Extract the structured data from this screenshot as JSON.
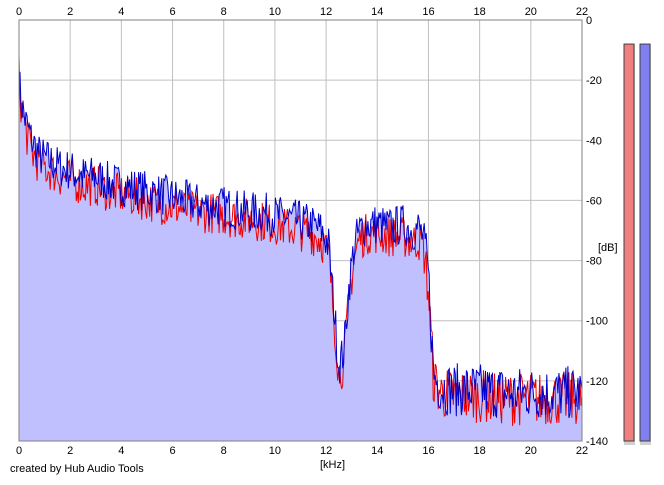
{
  "credit": "created by Hub Audio Tools",
  "chart_data": {
    "type": "area",
    "xlabel": "[kHz]",
    "ylabel": "[dB]",
    "xlim": [
      0,
      22
    ],
    "ylim": [
      -140,
      0
    ],
    "x_ticks": [
      0,
      2,
      4,
      6,
      8,
      10,
      12,
      14,
      16,
      18,
      20,
      22
    ],
    "y_ticks": [
      0,
      -20,
      -40,
      -60,
      -80,
      -100,
      -120,
      -140
    ],
    "grid": true,
    "series": [
      {
        "color": "#0000cc",
        "fill": "#c0c0ff",
        "x": [
          0,
          0.1,
          0.3,
          0.5,
          0.8,
          1.2,
          1.6,
          2.0,
          2.5,
          3.0,
          3.5,
          4.0,
          4.5,
          5.0,
          5.5,
          6.0,
          6.5,
          7.0,
          7.5,
          8.0,
          8.5,
          9.0,
          9.5,
          10.0,
          10.5,
          11.0,
          11.4,
          11.8,
          12.1,
          12.3,
          12.5,
          12.7,
          12.9,
          13.1,
          13.3,
          13.6,
          14.0,
          14.5,
          15.0,
          15.4,
          15.6,
          15.8,
          16.0,
          16.2,
          16.5,
          17,
          18,
          19,
          20,
          21,
          22
        ],
        "values": [
          -20,
          -28,
          -35,
          -40,
          -45,
          -47,
          -49,
          -50,
          -52,
          -52,
          -54,
          -55,
          -56,
          -57,
          -58,
          -59,
          -60,
          -61,
          -62,
          -62,
          -63,
          -64,
          -64,
          -65,
          -66,
          -67,
          -68,
          -70,
          -75,
          -95,
          -115,
          -110,
          -88,
          -75,
          -70,
          -68,
          -68,
          -69,
          -68,
          -70,
          -69,
          -72,
          -85,
          -118,
          -122,
          -123,
          -123,
          -124,
          -124,
          -124,
          -124
        ]
      },
      {
        "color": "#ee0000",
        "x": [
          0,
          0.1,
          0.3,
          0.5,
          0.8,
          1.2,
          1.6,
          2.0,
          2.5,
          3.0,
          3.5,
          4.0,
          4.5,
          5.0,
          5.5,
          6.0,
          6.5,
          7.0,
          7.5,
          8.0,
          8.5,
          9.0,
          9.5,
          10.0,
          10.5,
          11.0,
          11.4,
          11.8,
          12.1,
          12.3,
          12.5,
          12.7,
          12.9,
          13.1,
          13.3,
          13.6,
          14.0,
          14.5,
          15.0,
          15.4,
          15.6,
          15.8,
          16.0,
          16.2,
          16.5,
          17,
          18,
          19,
          20,
          21,
          22
        ],
        "values": [
          -18,
          -30,
          -38,
          -44,
          -48,
          -50,
          -52,
          -53,
          -55,
          -55,
          -57,
          -58,
          -59,
          -60,
          -61,
          -62,
          -63,
          -64,
          -64,
          -65,
          -66,
          -66,
          -67,
          -68,
          -69,
          -70,
          -71,
          -73,
          -78,
          -98,
          -118,
          -114,
          -92,
          -79,
          -73,
          -71,
          -71,
          -72,
          -72,
          -74,
          -73,
          -76,
          -90,
          -120,
          -124,
          -125,
          -125,
          -126,
          -126,
          -126,
          -126
        ]
      }
    ],
    "level_meters": [
      {
        "color": "#f08080",
        "level": -8
      },
      {
        "color": "#8080f0",
        "level": -8
      }
    ]
  }
}
